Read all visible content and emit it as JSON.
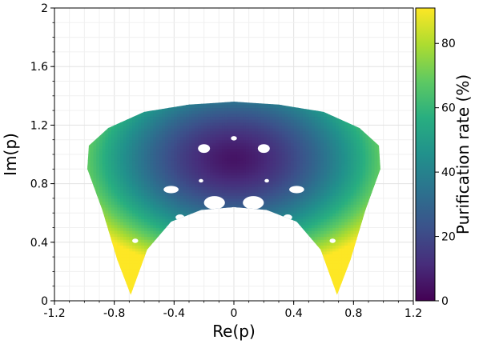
{
  "chart_data": {
    "type": "heatmap",
    "xlabel": "Re(p)",
    "ylabel": "Im(p)",
    "colorbar_label": "Purification rate (%)",
    "xlim": [
      -1.2,
      1.2
    ],
    "ylim": [
      0,
      2
    ],
    "x_ticks": [
      "-1.2",
      "-0.8",
      "-0.4",
      "0",
      "0.4",
      "0.8",
      "1.2"
    ],
    "y_ticks": [
      "0",
      "0.4",
      "0.8",
      "1.2",
      "1.6",
      "2"
    ],
    "colorbar_range": [
      0,
      91
    ],
    "colorbar_ticks": [
      "0",
      "20",
      "40",
      "60",
      "80"
    ],
    "colormap": "viridis",
    "grid": true,
    "region": {
      "upper_boundary": [
        [
          -0.98,
          0.9
        ],
        [
          -0.97,
          1.06
        ],
        [
          -0.84,
          1.18
        ],
        [
          -0.6,
          1.29
        ],
        [
          -0.3,
          1.34
        ],
        [
          0,
          1.36
        ],
        [
          0.3,
          1.34
        ],
        [
          0.6,
          1.29
        ],
        [
          0.84,
          1.18
        ],
        [
          0.97,
          1.06
        ],
        [
          0.98,
          0.9
        ]
      ],
      "lower_boundary": [
        [
          -0.98,
          0.9
        ],
        [
          -0.88,
          0.62
        ],
        [
          -0.78,
          0.28
        ],
        [
          -0.69,
          0.04
        ],
        [
          -0.58,
          0.35
        ],
        [
          -0.42,
          0.54
        ],
        [
          -0.22,
          0.62
        ],
        [
          0,
          0.64
        ],
        [
          0.22,
          0.62
        ],
        [
          0.42,
          0.54
        ],
        [
          0.58,
          0.35
        ],
        [
          0.69,
          0.04
        ],
        [
          0.78,
          0.28
        ],
        [
          0.88,
          0.62
        ],
        [
          0.98,
          0.9
        ]
      ],
      "min_rate_center": [
        0,
        0.97
      ],
      "min_rate": 5,
      "max_rate": 91
    }
  }
}
